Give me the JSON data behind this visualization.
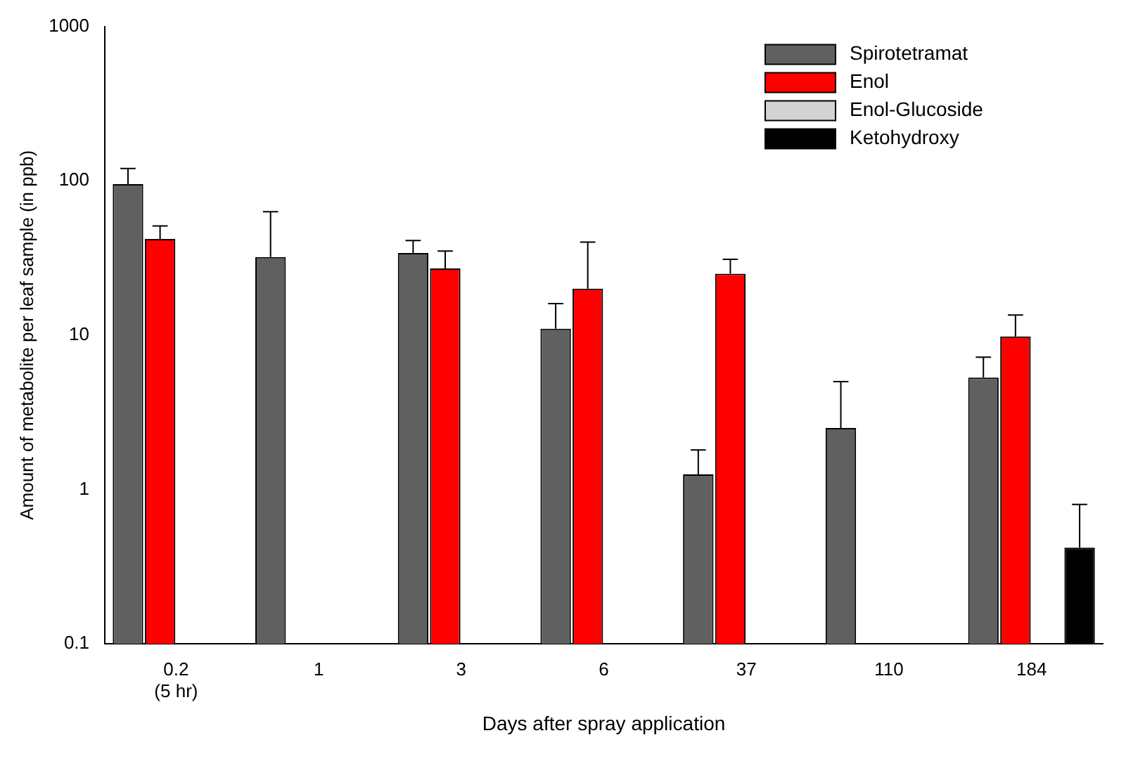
{
  "chart_data": {
    "type": "bar",
    "xlabel": "Days after spray application",
    "ylabel": "Amount of metabolite per leaf sample (in ppb)",
    "categories": [
      "0.2\n(5 hr)",
      "1",
      "3",
      "6",
      "37",
      "110",
      "184"
    ],
    "series": [
      {
        "name": "Spirotetramat",
        "color": "#606060",
        "values": [
          95,
          32,
          34,
          11,
          1.25,
          2.5,
          5.3
        ],
        "errors": [
          [
            95,
            120
          ],
          [
            32,
            63
          ],
          [
            34,
            41
          ],
          [
            11,
            16
          ],
          [
            1.25,
            1.8
          ],
          [
            2.5,
            5
          ],
          [
            5.3,
            7.2
          ]
        ]
      },
      {
        "name": "Enol",
        "color": "#ff0000",
        "values": [
          42,
          null,
          27,
          20,
          25,
          null,
          9.8
        ],
        "errors": [
          [
            42,
            51
          ],
          null,
          [
            27,
            35
          ],
          [
            20,
            40
          ],
          [
            25,
            31
          ],
          null,
          [
            9.8,
            13.5
          ]
        ]
      },
      {
        "name": "Enol-Glucoside",
        "color": "#d3d3d3",
        "values": [
          null,
          null,
          null,
          null,
          null,
          null,
          null
        ]
      },
      {
        "name": "Ketohydroxy",
        "color": "#000000",
        "values": [
          null,
          null,
          null,
          null,
          null,
          null,
          0.42
        ],
        "errors": [
          null,
          null,
          null,
          null,
          null,
          null,
          [
            0.42,
            0.8
          ]
        ]
      }
    ],
    "log": "y",
    "ylim": [
      0.1,
      1000
    ],
    "yticks": [
      0.1,
      1,
      10,
      100,
      1000
    ],
    "grid": false,
    "legend": "top right"
  }
}
